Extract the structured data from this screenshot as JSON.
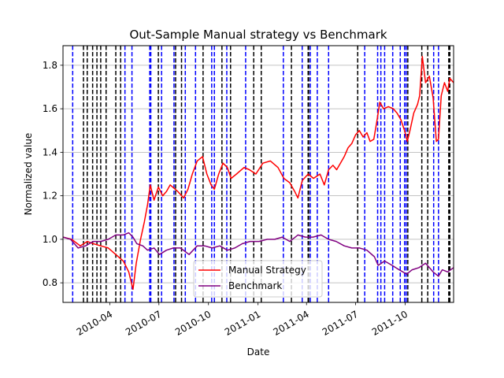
{
  "chart_data": {
    "type": "line",
    "title": "Out-Sample Manual strategy vs Benchmark",
    "xlabel": "Date",
    "ylabel": "Normalized value",
    "xlim": [
      "2010-01-04",
      "2011-12-30"
    ],
    "ylim": [
      0.71,
      1.89
    ],
    "x_ticks": [
      {
        "date": "2010-04-01",
        "label": "2010-04"
      },
      {
        "date": "2010-07-01",
        "label": "2010-07"
      },
      {
        "date": "2010-10-01",
        "label": "2010-10"
      },
      {
        "date": "2011-01-01",
        "label": "2011-01"
      },
      {
        "date": "2011-04-01",
        "label": "2011-04"
      },
      {
        "date": "2011-07-01",
        "label": "2011-07"
      },
      {
        "date": "2011-10-01",
        "label": "2011-10"
      }
    ],
    "y_ticks": [
      0.8,
      1.0,
      1.2,
      1.4,
      1.6,
      1.8
    ],
    "grid": "horizontal",
    "legend_position": "lower-center",
    "series": [
      {
        "name": "Manual Strategy",
        "color": "#ff0000",
        "points": [
          [
            "2010-01-04",
            1.01
          ],
          [
            "2010-01-20",
            1.0
          ],
          [
            "2010-02-05",
            0.97
          ],
          [
            "2010-02-18",
            0.99
          ],
          [
            "2010-03-01",
            0.98
          ],
          [
            "2010-03-15",
            0.97
          ],
          [
            "2010-03-29",
            0.96
          ],
          [
            "2010-04-12",
            0.93
          ],
          [
            "2010-04-26",
            0.9
          ],
          [
            "2010-05-06",
            0.85
          ],
          [
            "2010-05-14",
            0.77
          ],
          [
            "2010-05-20",
            0.89
          ],
          [
            "2010-05-28",
            1.0
          ],
          [
            "2010-06-04",
            1.08
          ],
          [
            "2010-06-10",
            1.16
          ],
          [
            "2010-06-15",
            1.25
          ],
          [
            "2010-06-22",
            1.18
          ],
          [
            "2010-06-30",
            1.24
          ],
          [
            "2010-07-08",
            1.2
          ],
          [
            "2010-07-15",
            1.22
          ],
          [
            "2010-07-22",
            1.25
          ],
          [
            "2010-08-05",
            1.22
          ],
          [
            "2010-08-16",
            1.19
          ],
          [
            "2010-08-24",
            1.23
          ],
          [
            "2010-09-01",
            1.3
          ],
          [
            "2010-09-10",
            1.36
          ],
          [
            "2010-09-20",
            1.38
          ],
          [
            "2010-09-28",
            1.3
          ],
          [
            "2010-10-06",
            1.25
          ],
          [
            "2010-10-12",
            1.23
          ],
          [
            "2010-10-20",
            1.3
          ],
          [
            "2010-10-28",
            1.35
          ],
          [
            "2010-11-05",
            1.33
          ],
          [
            "2010-11-12",
            1.28
          ],
          [
            "2010-11-22",
            1.3
          ],
          [
            "2010-12-06",
            1.33
          ],
          [
            "2010-12-16",
            1.32
          ],
          [
            "2010-12-28",
            1.3
          ],
          [
            "2011-01-10",
            1.35
          ],
          [
            "2011-01-24",
            1.36
          ],
          [
            "2011-02-07",
            1.33
          ],
          [
            "2011-02-18",
            1.28
          ],
          [
            "2011-03-01",
            1.26
          ],
          [
            "2011-03-10",
            1.22
          ],
          [
            "2011-03-16",
            1.19
          ],
          [
            "2011-03-24",
            1.27
          ],
          [
            "2011-04-04",
            1.3
          ],
          [
            "2011-04-14",
            1.28
          ],
          [
            "2011-04-26",
            1.3
          ],
          [
            "2011-05-04",
            1.25
          ],
          [
            "2011-05-12",
            1.32
          ],
          [
            "2011-05-20",
            1.34
          ],
          [
            "2011-05-27",
            1.32
          ],
          [
            "2011-06-03",
            1.35
          ],
          [
            "2011-06-10",
            1.38
          ],
          [
            "2011-06-17",
            1.42
          ],
          [
            "2011-06-24",
            1.44
          ],
          [
            "2011-07-01",
            1.48
          ],
          [
            "2011-07-08",
            1.5
          ],
          [
            "2011-07-15",
            1.47
          ],
          [
            "2011-07-22",
            1.49
          ],
          [
            "2011-07-28",
            1.45
          ],
          [
            "2011-08-04",
            1.46
          ],
          [
            "2011-08-10",
            1.55
          ],
          [
            "2011-08-15",
            1.63
          ],
          [
            "2011-08-22",
            1.6
          ],
          [
            "2011-08-31",
            1.61
          ],
          [
            "2011-09-09",
            1.6
          ],
          [
            "2011-09-16",
            1.58
          ],
          [
            "2011-09-23",
            1.55
          ],
          [
            "2011-09-30",
            1.5
          ],
          [
            "2011-10-05",
            1.45
          ],
          [
            "2011-10-10",
            1.5
          ],
          [
            "2011-10-17",
            1.58
          ],
          [
            "2011-10-24",
            1.62
          ],
          [
            "2011-10-28",
            1.66
          ],
          [
            "2011-11-02",
            1.84
          ],
          [
            "2011-11-08",
            1.72
          ],
          [
            "2011-11-15",
            1.75
          ],
          [
            "2011-11-22",
            1.65
          ],
          [
            "2011-11-28",
            1.45
          ],
          [
            "2011-12-02",
            1.46
          ],
          [
            "2011-12-07",
            1.66
          ],
          [
            "2011-12-13",
            1.72
          ],
          [
            "2011-12-19",
            1.68
          ],
          [
            "2011-12-23",
            1.74
          ],
          [
            "2011-12-30",
            1.72
          ]
        ]
      },
      {
        "name": "Benchmark",
        "color": "#800080",
        "points": [
          [
            "2010-01-04",
            1.01
          ],
          [
            "2010-01-18",
            1.0
          ],
          [
            "2010-02-01",
            0.96
          ],
          [
            "2010-02-15",
            0.97
          ],
          [
            "2010-03-01",
            0.99
          ],
          [
            "2010-03-15",
            0.99
          ],
          [
            "2010-03-29",
            1.0
          ],
          [
            "2010-04-12",
            1.02
          ],
          [
            "2010-04-26",
            1.02
          ],
          [
            "2010-05-06",
            1.03
          ],
          [
            "2010-05-14",
            1.01
          ],
          [
            "2010-05-21",
            0.98
          ],
          [
            "2010-06-01",
            0.97
          ],
          [
            "2010-06-10",
            0.95
          ],
          [
            "2010-06-22",
            0.96
          ],
          [
            "2010-07-02",
            0.93
          ],
          [
            "2010-07-15",
            0.95
          ],
          [
            "2010-07-28",
            0.96
          ],
          [
            "2010-08-10",
            0.96
          ],
          [
            "2010-08-26",
            0.93
          ],
          [
            "2010-09-10",
            0.97
          ],
          [
            "2010-09-24",
            0.97
          ],
          [
            "2010-10-08",
            0.96
          ],
          [
            "2010-10-22",
            0.97
          ],
          [
            "2010-11-05",
            0.95
          ],
          [
            "2010-11-19",
            0.96
          ],
          [
            "2010-12-03",
            0.98
          ],
          [
            "2010-12-17",
            0.99
          ],
          [
            "2011-01-03",
            0.99
          ],
          [
            "2011-01-18",
            1.0
          ],
          [
            "2011-02-01",
            1.0
          ],
          [
            "2011-02-15",
            1.01
          ],
          [
            "2011-03-01",
            0.99
          ],
          [
            "2011-03-16",
            1.02
          ],
          [
            "2011-03-30",
            1.01
          ],
          [
            "2011-04-13",
            1.01
          ],
          [
            "2011-04-28",
            1.02
          ],
          [
            "2011-05-12",
            1.0
          ],
          [
            "2011-05-26",
            0.99
          ],
          [
            "2011-06-10",
            0.97
          ],
          [
            "2011-06-24",
            0.96
          ],
          [
            "2011-07-08",
            0.96
          ],
          [
            "2011-07-22",
            0.95
          ],
          [
            "2011-08-05",
            0.92
          ],
          [
            "2011-08-12",
            0.88
          ],
          [
            "2011-08-24",
            0.9
          ],
          [
            "2011-09-07",
            0.88
          ],
          [
            "2011-09-20",
            0.86
          ],
          [
            "2011-10-04",
            0.84
          ],
          [
            "2011-10-14",
            0.86
          ],
          [
            "2011-10-27",
            0.87
          ],
          [
            "2011-11-08",
            0.89
          ],
          [
            "2011-11-22",
            0.85
          ],
          [
            "2011-12-02",
            0.83
          ],
          [
            "2011-12-09",
            0.86
          ],
          [
            "2011-12-19",
            0.85
          ],
          [
            "2011-12-30",
            0.87
          ]
        ]
      }
    ],
    "vertical_lines": {
      "blue_dates": [
        "2010-01-22",
        "2010-04-29",
        "2010-05-12",
        "2010-06-14",
        "2010-06-16",
        "2010-07-06",
        "2010-07-29",
        "2010-08-19",
        "2010-09-07",
        "2010-10-07",
        "2010-10-12",
        "2010-11-04",
        "2010-12-09",
        "2011-02-17",
        "2011-03-24",
        "2011-04-08",
        "2011-04-21",
        "2011-05-12",
        "2011-07-18",
        "2011-08-11",
        "2011-08-17",
        "2011-08-24",
        "2011-09-08",
        "2011-09-22",
        "2011-09-30",
        "2011-10-03",
        "2011-11-23",
        "2011-12-02"
      ],
      "black_dates": [
        "2010-02-11",
        "2010-02-18",
        "2010-02-28",
        "2010-03-08",
        "2010-03-15",
        "2010-03-25",
        "2010-04-12",
        "2010-04-21",
        "2010-06-30",
        "2010-08-01",
        "2010-08-12",
        "2010-09-21",
        "2010-10-26",
        "2010-11-11",
        "2010-12-24",
        "2011-01-07",
        "2011-03-04",
        "2011-04-04",
        "2011-04-05",
        "2011-07-05",
        "2011-10-06",
        "2011-11-01",
        "2011-11-12",
        "2011-12-21",
        "2011-12-22",
        "2011-12-23"
      ]
    }
  }
}
